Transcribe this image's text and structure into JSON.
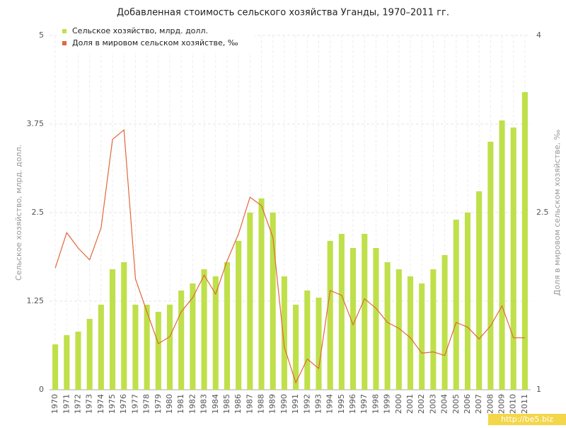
{
  "chart_data": {
    "type": "bar-line",
    "title": "Добавленная стоимость сельского хозяйства Уганды, 1970–2011 гг.",
    "y_label": "Сельское хозяйство, млрд. долл.",
    "y2_label": "Доля в мировом сельском хозяйстве, ‰",
    "watermark": "http://be5.biz",
    "categories": [
      "1970",
      "1971",
      "1972",
      "1973",
      "1974",
      "1975",
      "1976",
      "1977",
      "1978",
      "1979",
      "1980",
      "1981",
      "1982",
      "1983",
      "1984",
      "1985",
      "1986",
      "1987",
      "1988",
      "1989",
      "1990",
      "1991",
      "1992",
      "1993",
      "1994",
      "1995",
      "1996",
      "1997",
      "1998",
      "1999",
      "2000",
      "2001",
      "2002",
      "2003",
      "2004",
      "2005",
      "2006",
      "2007",
      "2008",
      "2009",
      "2010",
      "2011"
    ],
    "series": [
      {
        "name": "Сельское хозяйство, млрд. долл.",
        "type": "bar",
        "color": "#bfe04a",
        "values": [
          0.64,
          0.77,
          0.82,
          1.0,
          1.2,
          1.7,
          1.8,
          1.2,
          1.2,
          1.1,
          1.2,
          1.4,
          1.5,
          1.7,
          1.6,
          1.8,
          2.1,
          2.5,
          2.7,
          2.5,
          1.6,
          1.2,
          1.4,
          1.3,
          2.1,
          2.2,
          2.0,
          2.2,
          2.0,
          1.8,
          1.7,
          1.6,
          1.5,
          1.7,
          1.9,
          2.4,
          2.5,
          2.8,
          3.5,
          3.8,
          3.7,
          4.2
        ]
      },
      {
        "name": "Доля в мировом сельском хозяйстве, ‰",
        "type": "line",
        "axis": "y2",
        "color": "#e0683a",
        "values": [
          2.03,
          2.33,
          2.2,
          2.1,
          2.37,
          3.12,
          3.2,
          1.94,
          1.66,
          1.39,
          1.45,
          1.66,
          1.78,
          1.97,
          1.81,
          2.09,
          2.32,
          2.63,
          2.56,
          2.29,
          1.36,
          1.06,
          1.26,
          1.18,
          1.84,
          1.8,
          1.55,
          1.77,
          1.69,
          1.57,
          1.52,
          1.44,
          1.31,
          1.32,
          1.29,
          1.57,
          1.53,
          1.43,
          1.54,
          1.71,
          1.44,
          1.44
        ]
      }
    ],
    "ylim": [
      0,
      5
    ],
    "yticks": [
      0,
      1.25,
      2.5,
      3.75,
      5
    ],
    "y2lim": [
      1,
      4
    ],
    "y2ticks": [
      1,
      2.5,
      4
    ],
    "grid": true,
    "legend": "top-left"
  }
}
